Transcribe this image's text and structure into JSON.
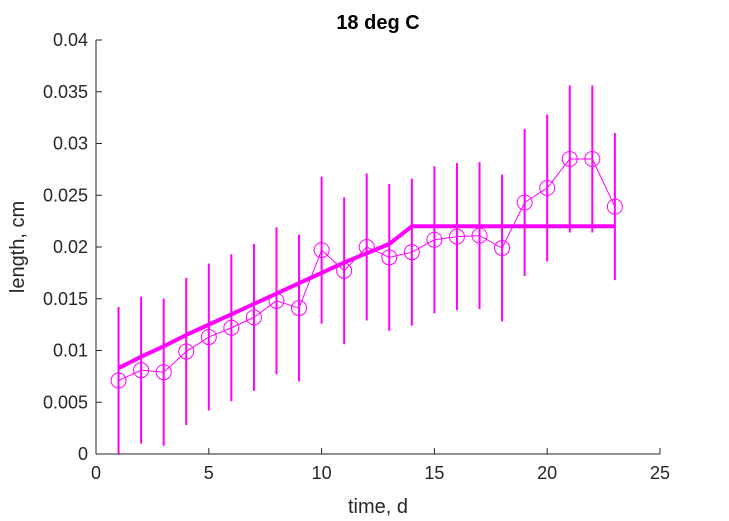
{
  "chart_data": {
    "type": "line",
    "title": "18 deg C",
    "xlabel": "time, d",
    "ylabel": "length, cm",
    "xlim": [
      0,
      25
    ],
    "ylim": [
      0,
      0.04
    ],
    "xticks": [
      0,
      5,
      10,
      15,
      20,
      25
    ],
    "xtick_labels": [
      "0",
      "5",
      "10",
      "15",
      "20",
      "25"
    ],
    "yticks": [
      0,
      0.005,
      0.01,
      0.015,
      0.02,
      0.025,
      0.03,
      0.035,
      0.04
    ],
    "ytick_labels": [
      "0",
      "0.005",
      "0.01",
      "0.015",
      "0.02",
      "0.025",
      "0.03",
      "0.035",
      "0.04"
    ],
    "grid": false,
    "color": "#ff00ff",
    "series": [
      {
        "type": "errorbar-marker-line",
        "marker": "circle",
        "x": [
          1,
          2,
          3,
          4,
          5,
          6,
          7,
          8,
          9,
          10,
          11,
          12,
          13,
          14,
          15,
          16,
          17,
          18,
          19,
          20,
          21,
          22,
          23
        ],
        "y": [
          0.0071,
          0.0081,
          0.0079,
          0.0099,
          0.0113,
          0.0122,
          0.0132,
          0.0148,
          0.0141,
          0.0197,
          0.0177,
          0.02,
          0.019,
          0.0195,
          0.0207,
          0.021,
          0.0211,
          0.0199,
          0.0243,
          0.0257,
          0.0285,
          0.0285,
          0.0239
        ],
        "err": [
          0.0071,
          0.0071,
          0.0071,
          0.0071,
          0.0071,
          0.0071,
          0.0071,
          0.0071,
          0.0071,
          0.0071,
          0.0071,
          0.0071,
          0.0071,
          0.0071,
          0.0071,
          0.0071,
          0.0071,
          0.0071,
          0.0071,
          0.0071,
          0.0071,
          0.0071,
          0.0071
        ]
      },
      {
        "type": "line",
        "x": [
          1,
          2,
          3,
          4,
          5,
          6,
          7,
          8,
          9,
          10,
          11,
          12,
          13,
          14,
          15,
          16,
          17,
          18,
          19,
          20,
          21,
          22,
          23
        ],
        "y": [
          0.0083,
          0.0094,
          0.0104,
          0.0115,
          0.0125,
          0.0135,
          0.0145,
          0.0155,
          0.0165,
          0.0175,
          0.0185,
          0.0194,
          0.0203,
          0.022,
          0.022,
          0.022,
          0.022,
          0.022,
          0.022,
          0.022,
          0.022,
          0.022,
          0.022
        ]
      }
    ]
  }
}
